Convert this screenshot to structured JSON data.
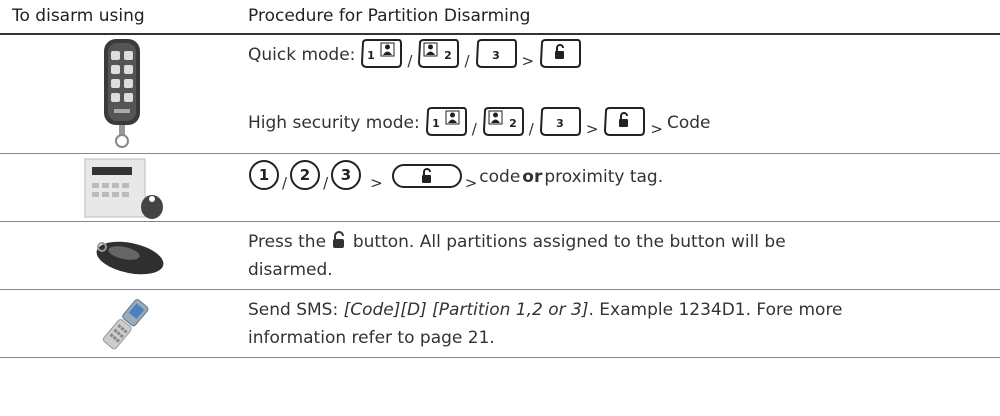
{
  "header": {
    "device": "To disarm using",
    "procedure": "Procedure for Partition Disarming"
  },
  "separators": {
    "either": "/",
    "then": ">"
  },
  "rows": [
    {
      "quick_label": "Quick mode:",
      "high_label": "High security mode:",
      "keys": [
        "1",
        "2",
        "3"
      ],
      "suffix": "Code"
    },
    {
      "keys": [
        "1",
        "2",
        "3"
      ],
      "suffix": "code",
      "bold": "or",
      "tail": "proximity tag."
    },
    {
      "text_before": "Press the",
      "text_after": "button. All partitions assigned to the button will be disarmed."
    },
    {
      "label": "Send SMS:",
      "italic": "[Code][D] [Partition 1,2 or 3]",
      "text": ". Example 1234D1. Fore more information refer to page 21."
    }
  ]
}
